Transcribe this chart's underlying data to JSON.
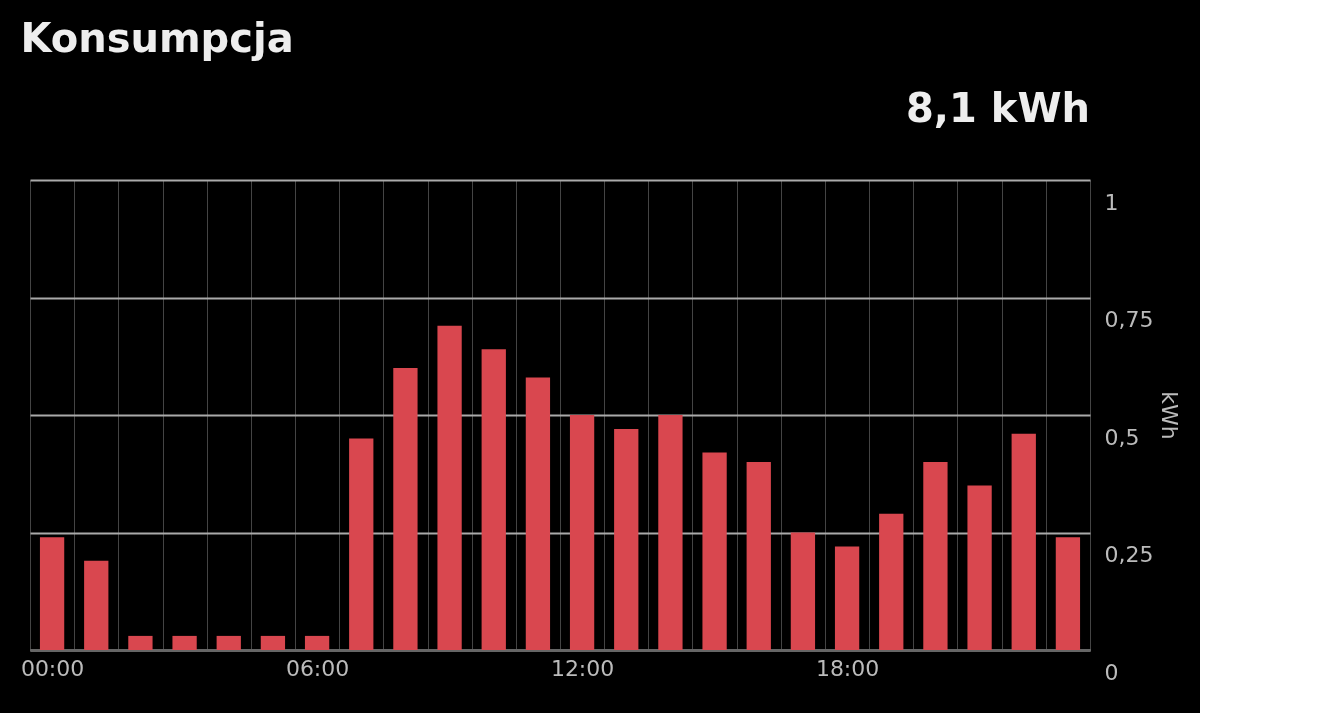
{
  "chart_data": {
    "type": "bar",
    "title": "Konsumpcja",
    "annotations": [
      "8,1 kWh"
    ],
    "ylabel": "kWh",
    "categories": [
      "00:00",
      null,
      null,
      null,
      null,
      null,
      "06:00",
      null,
      null,
      null,
      null,
      null,
      "12:00",
      null,
      null,
      null,
      null,
      null,
      "18:00",
      null,
      null,
      null,
      null,
      null
    ],
    "values": [
      0.24,
      0.19,
      0.03,
      0.03,
      0.03,
      0.03,
      0.03,
      0.45,
      0.6,
      0.69,
      0.64,
      0.58,
      0.5,
      0.47,
      0.5,
      0.42,
      0.4,
      0.25,
      0.22,
      0.29,
      0.4,
      0.35,
      0.46,
      0.24
    ],
    "color": "#d9474f",
    "ylim": [
      0,
      1
    ],
    "yticks": [
      0,
      {
        "value": 0.25,
        "label": "0,25"
      },
      {
        "value": 0.5,
        "label": "0,5"
      },
      {
        "value": 0.75,
        "label": "0,75"
      },
      1
    ],
    "grid": true
  }
}
